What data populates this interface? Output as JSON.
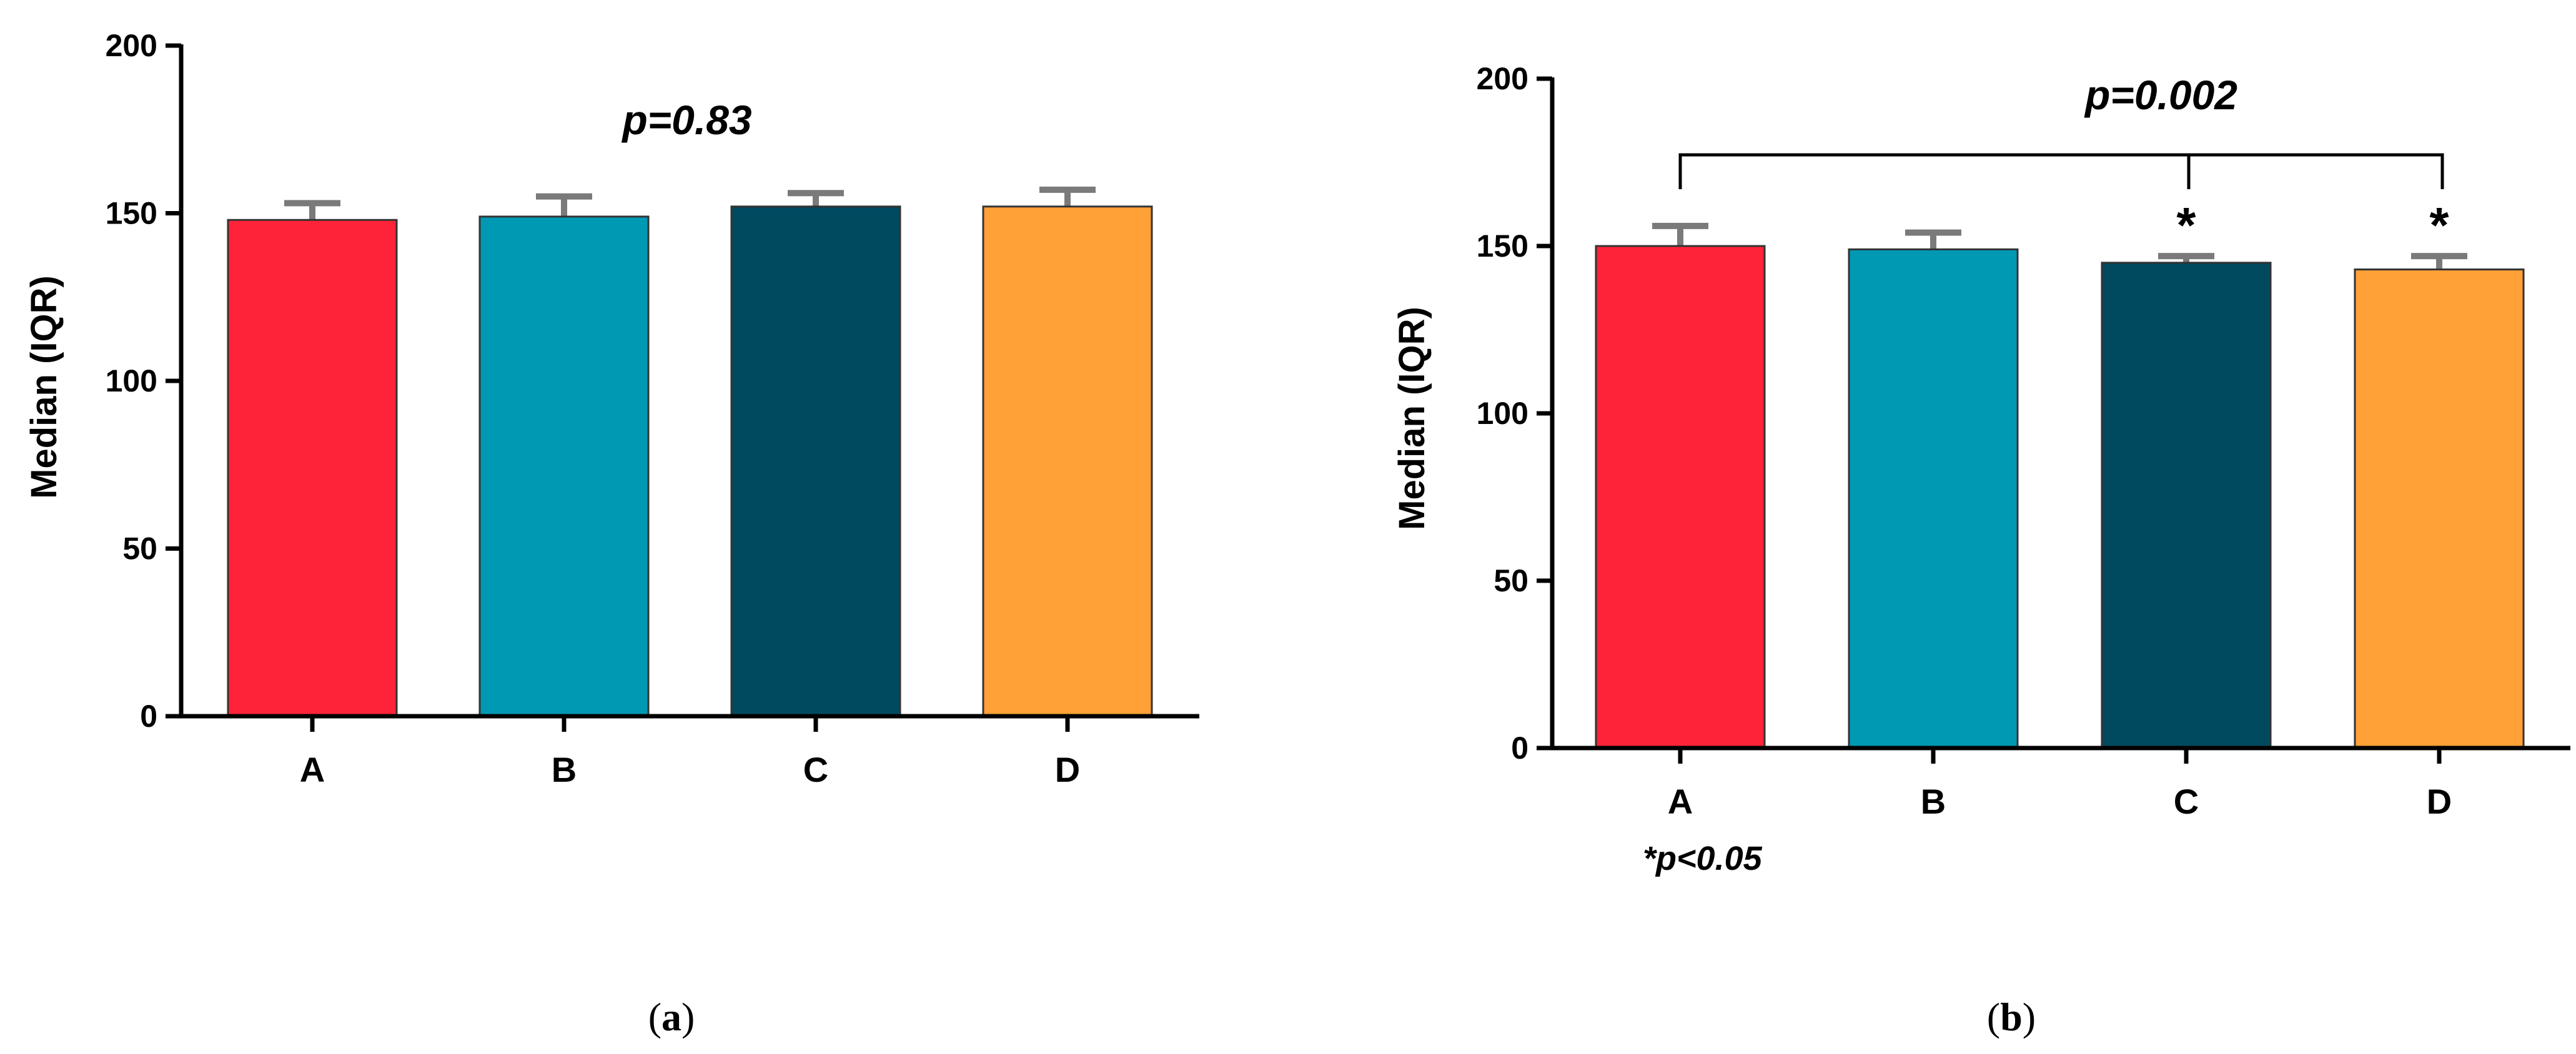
{
  "chart_data": [
    {
      "type": "bar",
      "panel": "(a)",
      "panel_letter": "a",
      "categories": [
        "A",
        "B",
        "C",
        "D"
      ],
      "values": [
        148,
        149,
        152,
        152
      ],
      "error_upper": [
        153,
        155,
        156,
        157
      ],
      "colors": [
        "#FF2339",
        "#0099B3",
        "#004A60",
        "#FFA136"
      ],
      "ylabel": "Median (IQR)",
      "ylim": [
        0,
        200
      ],
      "yticks": [
        0,
        50,
        100,
        150,
        200
      ],
      "p_value": "p=0.83",
      "grid": false
    },
    {
      "type": "bar",
      "panel": "(b)",
      "panel_letter": "b",
      "categories": [
        "A",
        "B",
        "C",
        "D"
      ],
      "values": [
        150,
        149,
        145,
        143
      ],
      "error_upper": [
        156,
        154,
        147,
        147
      ],
      "colors": [
        "#FF2339",
        "#0099B3",
        "#004A60",
        "#FFA136"
      ],
      "ylabel": "Median (IQR)",
      "ylim": [
        0,
        200
      ],
      "yticks": [
        0,
        50,
        100,
        150,
        200
      ],
      "p_value": "p=0.002",
      "significant_markers": [
        "",
        "",
        "*",
        "*"
      ],
      "significance_note": "*p<0.05",
      "grid": false
    }
  ]
}
